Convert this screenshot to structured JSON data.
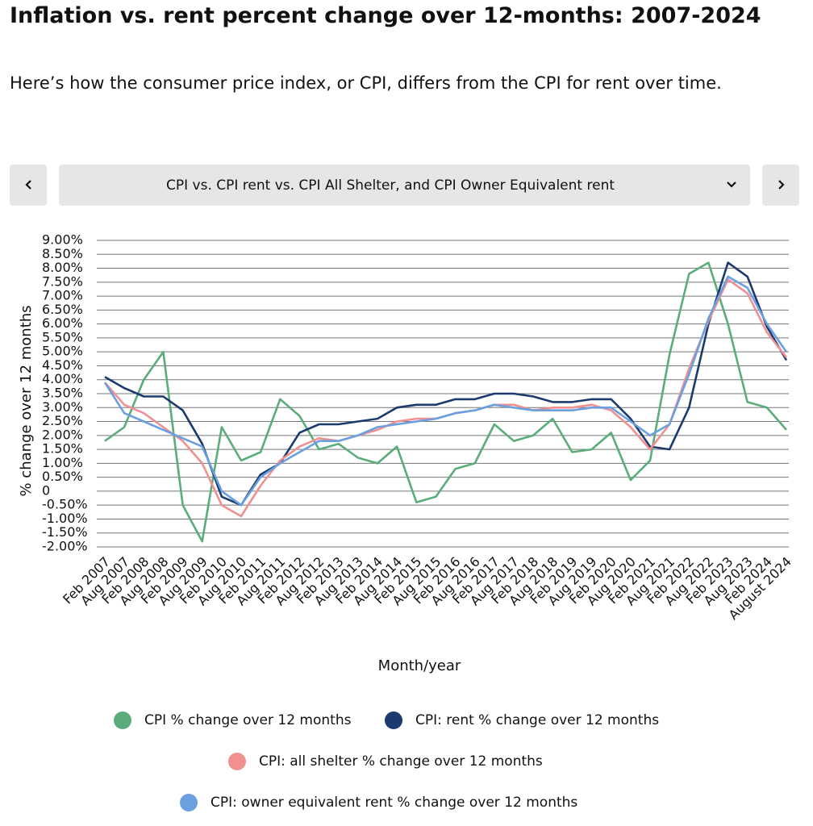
{
  "chart_data": {
    "type": "line",
    "title": "Inflation vs. rent percent change over 12-months: 2007-2024",
    "subtitle": "Here’s how the consumer price index, or CPI, differs from the CPI for rent over time.",
    "x_label": "Month/year",
    "y_label": "% change over 12 months",
    "categories": [
      "Feb 2007",
      "Aug 2007",
      "Feb 2008",
      "Aug 2008",
      "Feb 2009",
      "Aug 2009",
      "Feb 2010",
      "Aug 2010",
      "Feb 2011",
      "Aug 2011",
      "Feb 2012",
      "Aug 2012",
      "Feb 2013",
      "Aug 2013",
      "Feb 2014",
      "Aug 2014",
      "Feb 2015",
      "Aug 2015",
      "Feb 2016",
      "Aug 2016",
      "Feb 2017",
      "Aug 2017",
      "Feb 2018",
      "Aug 2018",
      "Feb 2019",
      "Aug 2019",
      "Feb 2020",
      "Aug 2020",
      "Feb 2021",
      "Aug 2021",
      "Feb 2022",
      "Aug 2022",
      "Feb 2023",
      "Aug 2023",
      "Feb 2024",
      "August 2024"
    ],
    "series": [
      {
        "name": "CPI % change over 12 months",
        "color": "#5aad7b",
        "values": [
          1.8,
          2.3,
          4.0,
          5.0,
          -0.5,
          -1.8,
          2.3,
          1.1,
          1.4,
          3.3,
          2.7,
          1.5,
          1.7,
          1.2,
          1.0,
          1.6,
          -0.4,
          -0.2,
          0.8,
          1.0,
          2.4,
          1.8,
          2.0,
          2.6,
          1.4,
          1.5,
          2.1,
          0.4,
          1.1,
          4.9,
          7.8,
          8.2,
          6.0,
          3.2,
          3.0,
          2.2
        ]
      },
      {
        "name": "CPI: rent % change over 12 months",
        "color": "#1b3a6e",
        "values": [
          4.1,
          3.7,
          3.4,
          3.4,
          2.9,
          1.7,
          -0.2,
          -0.5,
          0.6,
          1.0,
          2.1,
          2.4,
          2.4,
          2.5,
          2.6,
          3.0,
          3.1,
          3.1,
          3.3,
          3.3,
          3.5,
          3.5,
          3.4,
          3.2,
          3.2,
          3.3,
          3.3,
          2.6,
          1.6,
          1.5,
          3.0,
          6.0,
          8.2,
          7.7,
          5.9,
          4.7
        ]
      },
      {
        "name": "CPI: all shelter % change over 12 months",
        "color": "#f0908f",
        "values": [
          3.9,
          3.1,
          2.8,
          2.3,
          1.8,
          1.0,
          -0.5,
          -0.9,
          0.2,
          1.1,
          1.6,
          1.9,
          1.8,
          2.0,
          2.2,
          2.5,
          2.6,
          2.6,
          2.8,
          2.9,
          3.1,
          3.1,
          2.9,
          3.0,
          3.0,
          3.1,
          2.9,
          2.3,
          1.5,
          2.4,
          4.4,
          6.1,
          7.6,
          7.1,
          5.7,
          4.8
        ]
      },
      {
        "name": "CPI: owner equivalent rent % change over 12 months",
        "color": "#6a9fe0",
        "values": [
          3.9,
          2.8,
          2.5,
          2.2,
          1.9,
          1.6,
          0.0,
          -0.5,
          0.5,
          1.0,
          1.4,
          1.8,
          1.8,
          2.0,
          2.3,
          2.4,
          2.5,
          2.6,
          2.8,
          2.9,
          3.1,
          3.0,
          2.9,
          2.9,
          2.9,
          3.0,
          3.0,
          2.5,
          2.0,
          2.4,
          4.2,
          6.2,
          7.7,
          7.3,
          6.0,
          5.0
        ]
      }
    ],
    "ylim": [
      -2,
      9
    ],
    "yticks": [
      {
        "value": -2,
        "label": "-2.00%"
      },
      {
        "value": -1.5,
        "label": "-1.50%"
      },
      {
        "value": -1,
        "label": "-1.00%"
      },
      {
        "value": -0.5,
        "label": "-0.50%"
      },
      0,
      {
        "value": 0.5,
        "label": "0.50%"
      },
      {
        "value": 1,
        "label": "1.00%"
      },
      {
        "value": 1.5,
        "label": "1.50%"
      },
      {
        "value": 2,
        "label": "2.00%"
      },
      {
        "value": 2.5,
        "label": "2.50%"
      },
      {
        "value": 3,
        "label": "3.00%"
      },
      {
        "value": 3.5,
        "label": "3.50%"
      },
      {
        "value": 4,
        "label": "4.00%"
      },
      {
        "value": 4.5,
        "label": "4.50%"
      },
      {
        "value": 5,
        "label": "5.00%"
      },
      {
        "value": 5.5,
        "label": "5.50%"
      },
      {
        "value": 6,
        "label": "6.00%"
      },
      {
        "value": 6.5,
        "label": "6.50%"
      },
      {
        "value": 7,
        "label": "7.00%"
      },
      {
        "value": 7.5,
        "label": "7.50%"
      },
      {
        "value": 8,
        "label": "8.00%"
      },
      {
        "value": 8.5,
        "label": "8.50%"
      },
      {
        "value": 9,
        "label": "9.00%"
      }
    ],
    "grid": true
  },
  "page": {
    "selector": "CPI vs. CPI rent vs. CPI All Shelter, and CPI Owner Equivalent rent"
  }
}
